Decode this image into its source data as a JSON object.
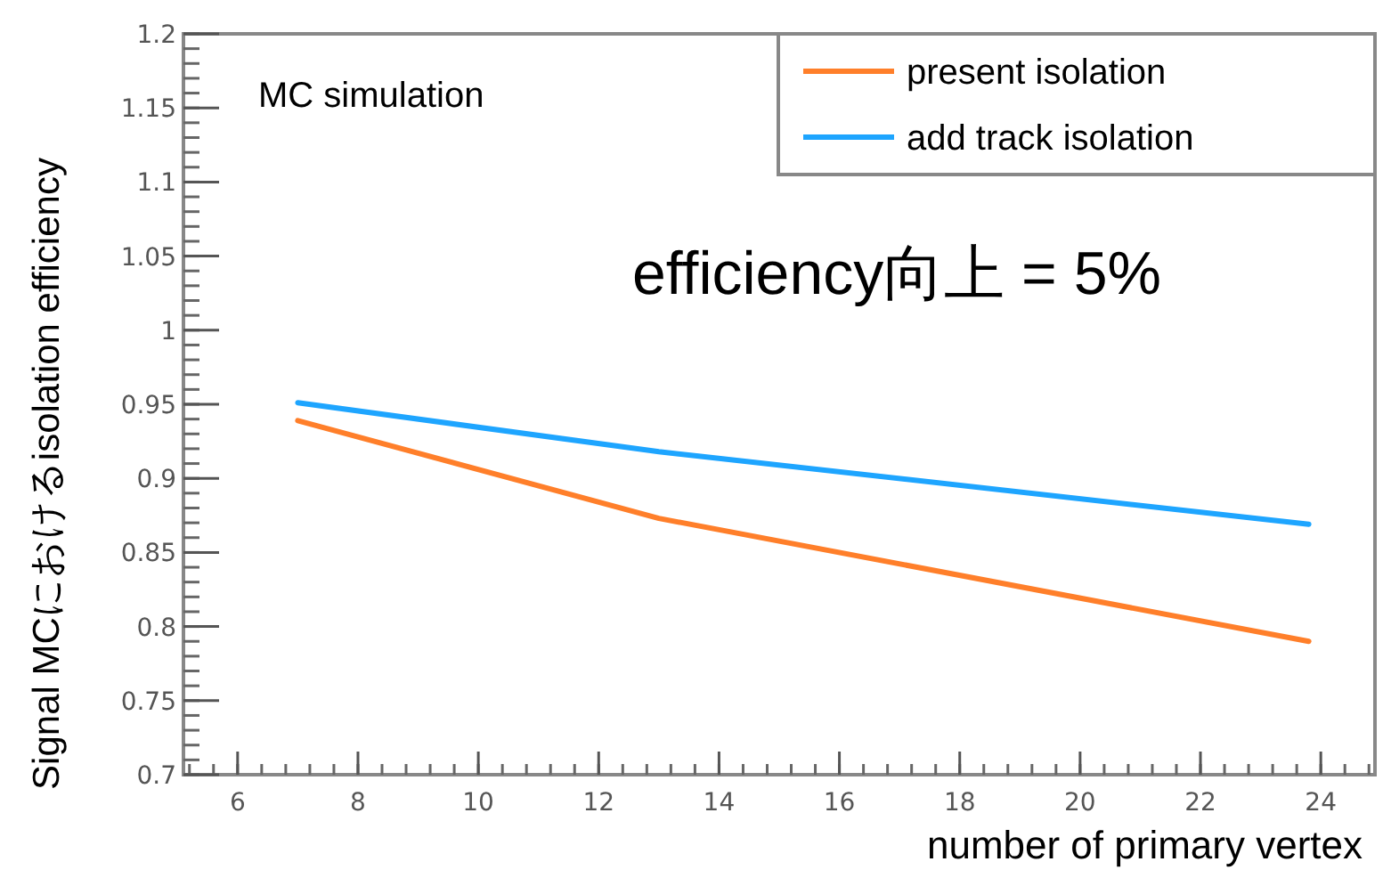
{
  "chart_data": {
    "type": "line",
    "xlabel": "number of primary vertex",
    "ylabel": "Signal MCにおけるisolation efficiency",
    "annotations": [
      "MC simulation",
      "efficiency向上 = 5%"
    ],
    "series": [
      {
        "name": "present isolation",
        "color": "#ff7f2a",
        "x": [
          7,
          13,
          23.8
        ],
        "values": [
          0.939,
          0.873,
          0.79
        ]
      },
      {
        "name": "add track isolation",
        "color": "#1ea5ff",
        "x": [
          7,
          13,
          23.8
        ],
        "values": [
          0.951,
          0.918,
          0.869
        ]
      }
    ],
    "xlim": [
      5.1,
      24.9
    ],
    "xticks": [
      6,
      8,
      10,
      12,
      14,
      16,
      18,
      20,
      22,
      24
    ],
    "ylim": [
      0.7,
      1.2
    ],
    "yticks": [
      0.7,
      0.75,
      0.8,
      0.85,
      0.9,
      0.95,
      1,
      1.05,
      1.1,
      1.15,
      1.2
    ],
    "legend": "top right",
    "grid": false
  }
}
